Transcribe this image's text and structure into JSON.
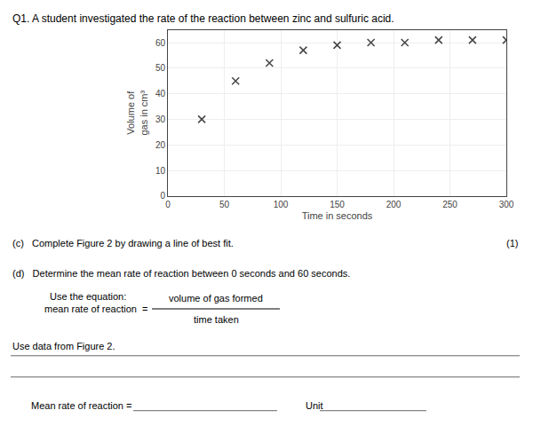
{
  "chart_data": {
    "type": "scatter",
    "title": "Q1. A student investigated the rate of the reaction between zinc and sulfuric acid.",
    "x": [
      30,
      60,
      90,
      120,
      150,
      180,
      210,
      240,
      270,
      300
    ],
    "values": [
      30,
      45,
      52,
      57,
      59,
      60,
      60,
      61,
      61,
      61
    ],
    "xlabel": "Time in seconds",
    "ylabel": "Volume of\ngas in cm³",
    "xlim": [
      0,
      300
    ],
    "ylim": [
      0,
      65
    ],
    "xticks": [
      0,
      50,
      100,
      150,
      200,
      250,
      300
    ],
    "yticks": [
      0,
      10,
      20,
      30,
      40,
      50,
      60
    ],
    "grid": true,
    "color": "#444444",
    "marker": "x",
    "annotations": [
      "(c)   Complete Figure 2 by drawing a line of best fit.",
      "(1)",
      "(d)   Determine the mean rate of reaction between 0 seconds and 60 seconds.",
      "Use the equation:",
      "mean rate of reaction  =",
      "volume of gas formed",
      "time taken",
      "Use data from Figure 2.",
      "Mean rate of reaction =",
      "Unit"
    ]
  }
}
